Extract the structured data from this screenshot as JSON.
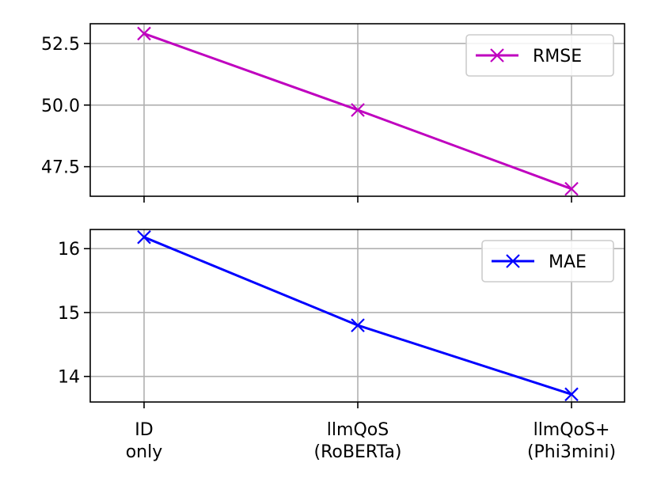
{
  "chart_data": [
    {
      "type": "line",
      "title": "",
      "xlabel": "",
      "ylabel": "",
      "categories": [
        [
          "ID",
          "only"
        ],
        [
          "llmQoS",
          "(RoBERTa)"
        ],
        [
          "llmQoS+",
          "(Phi3mini)"
        ]
      ],
      "series": [
        {
          "name": "RMSE",
          "color": "#bf00bf",
          "marker": "x",
          "values": [
            52.9,
            49.8,
            46.6
          ]
        }
      ],
      "ylim": [
        46.3,
        53.3
      ],
      "yticks": [
        47.5,
        50.0,
        52.5
      ],
      "ytick_labels": [
        "47.5",
        "50.0",
        "52.5"
      ],
      "grid": true,
      "legend": "top-right",
      "show_x_labels": false
    },
    {
      "type": "line",
      "title": "",
      "xlabel": "",
      "ylabel": "",
      "categories": [
        [
          "ID",
          "only"
        ],
        [
          "llmQoS",
          "(RoBERTa)"
        ],
        [
          "llmQoS+",
          "(Phi3mini)"
        ]
      ],
      "series": [
        {
          "name": "MAE",
          "color": "#0000ff",
          "marker": "x",
          "values": [
            16.18,
            14.8,
            13.72
          ]
        }
      ],
      "ylim": [
        13.6,
        16.3
      ],
      "yticks": [
        14,
        15,
        16
      ],
      "ytick_labels": [
        "14",
        "15",
        "16"
      ],
      "grid": true,
      "legend": "top-right",
      "show_x_labels": true
    }
  ]
}
